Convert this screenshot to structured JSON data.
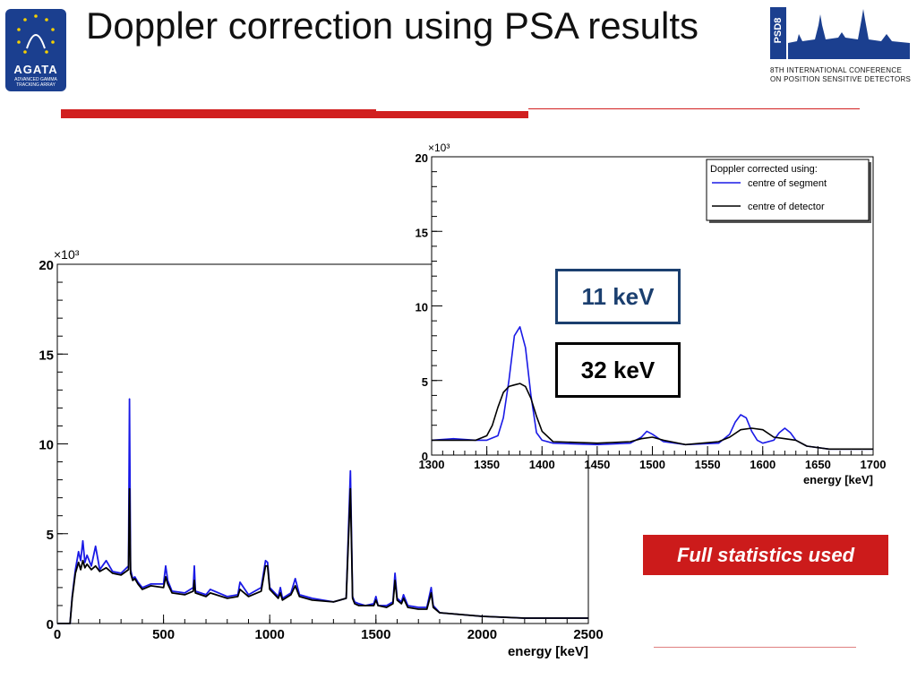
{
  "slide": {
    "title": "Doppler correction using PSA results",
    "agata_logo": {
      "name": "AGATA",
      "sub": "ADVANCED GAMMA TRACKING ARRAY"
    },
    "psd_logo": {
      "box_text": "PSD8",
      "caption": "8TH INTERNATIONAL CONFERENCE ON POSITION SENSITIVE DETECTORS"
    },
    "resolution_labels": {
      "segment": "11 keV",
      "detector": "32 keV"
    },
    "note": "Full statistics used",
    "colors": {
      "accent_red": "#cc1b1b",
      "segment": "#1a1ae6",
      "detector": "#000000",
      "label_blue": "#1b3f6f"
    }
  },
  "chart_data": [
    {
      "type": "line",
      "xlabel": "energy [keV]",
      "ylabel": "",
      "y_multiplier": "×10³",
      "xlim": [
        0,
        2500
      ],
      "ylim": [
        0,
        20
      ],
      "x_ticks": [
        0,
        500,
        1000,
        1500,
        2000,
        2500
      ],
      "y_ticks": [
        0,
        5,
        10,
        15,
        20
      ],
      "series": [
        {
          "name": "centre of segment",
          "color": "#1a1ae6",
          "x": [
            0,
            60,
            70,
            85,
            100,
            110,
            120,
            130,
            140,
            160,
            180,
            200,
            230,
            260,
            300,
            335,
            340,
            345,
            355,
            365,
            380,
            400,
            440,
            500,
            510,
            520,
            540,
            600,
            640,
            645,
            650,
            700,
            720,
            800,
            850,
            860,
            900,
            960,
            980,
            990,
            1000,
            1040,
            1050,
            1060,
            1100,
            1120,
            1140,
            1200,
            1300,
            1360,
            1380,
            1385,
            1390,
            1400,
            1420,
            1450,
            1490,
            1500,
            1510,
            1550,
            1580,
            1590,
            1600,
            1620,
            1630,
            1650,
            1700,
            1740,
            1760,
            1770,
            1800,
            1900,
            2000,
            2200,
            2500
          ],
          "y": [
            0,
            0,
            1.5,
            3.0,
            4.0,
            3.5,
            4.6,
            3.4,
            3.8,
            3.2,
            4.3,
            3.0,
            3.5,
            2.9,
            2.8,
            3.2,
            12.5,
            3.0,
            2.5,
            2.6,
            2.3,
            2.0,
            2.2,
            2.2,
            3.2,
            2.4,
            1.8,
            1.7,
            2.0,
            3.2,
            1.8,
            1.6,
            1.9,
            1.5,
            1.6,
            2.3,
            1.6,
            2.0,
            3.5,
            3.4,
            2.0,
            1.5,
            2.0,
            1.4,
            1.7,
            2.5,
            1.6,
            1.4,
            1.2,
            1.4,
            8.5,
            5.0,
            1.5,
            1.2,
            1.1,
            1.0,
            1.1,
            1.5,
            1.0,
            1.0,
            1.2,
            2.8,
            1.4,
            1.2,
            1.6,
            1.0,
            0.9,
            0.9,
            2.0,
            1.0,
            0.6,
            0.5,
            0.4,
            0.3,
            0.3
          ]
        },
        {
          "name": "centre of detector",
          "color": "#000000",
          "x": [
            0,
            60,
            70,
            85,
            100,
            110,
            120,
            130,
            140,
            160,
            180,
            200,
            230,
            260,
            300,
            335,
            340,
            345,
            355,
            365,
            380,
            400,
            440,
            500,
            510,
            520,
            540,
            600,
            640,
            645,
            650,
            700,
            720,
            800,
            850,
            860,
            900,
            960,
            980,
            990,
            1000,
            1040,
            1050,
            1060,
            1100,
            1120,
            1140,
            1200,
            1300,
            1360,
            1380,
            1385,
            1390,
            1400,
            1420,
            1450,
            1490,
            1500,
            1510,
            1550,
            1580,
            1590,
            1600,
            1620,
            1630,
            1650,
            1700,
            1740,
            1760,
            1770,
            1800,
            1900,
            2000,
            2200,
            2500
          ],
          "y": [
            0,
            0,
            1.4,
            2.8,
            3.4,
            3.0,
            3.5,
            3.1,
            3.3,
            3.0,
            3.2,
            2.9,
            3.1,
            2.8,
            2.7,
            3.0,
            7.5,
            2.8,
            2.4,
            2.5,
            2.2,
            1.9,
            2.1,
            2.0,
            2.6,
            2.2,
            1.7,
            1.6,
            1.8,
            2.4,
            1.7,
            1.5,
            1.7,
            1.4,
            1.5,
            1.9,
            1.5,
            1.8,
            3.2,
            3.2,
            1.9,
            1.4,
            1.7,
            1.3,
            1.6,
            2.1,
            1.5,
            1.3,
            1.2,
            1.4,
            7.5,
            4.5,
            1.4,
            1.1,
            1.0,
            1.0,
            1.0,
            1.3,
            1.0,
            0.9,
            1.1,
            2.4,
            1.3,
            1.1,
            1.4,
            0.9,
            0.8,
            0.8,
            1.7,
            0.9,
            0.6,
            0.5,
            0.4,
            0.3,
            0.3
          ]
        }
      ]
    },
    {
      "type": "line",
      "xlabel": "energy [keV]",
      "ylabel": "",
      "y_multiplier": "×10³",
      "xlim": [
        1300,
        1700
      ],
      "ylim": [
        0,
        20
      ],
      "x_ticks": [
        1300,
        1350,
        1400,
        1450,
        1500,
        1550,
        1600,
        1650,
        1700
      ],
      "y_ticks": [
        0,
        5,
        10,
        15,
        20
      ],
      "legend": {
        "title": "Doppler corrected using:",
        "placement": "top-right"
      },
      "series": [
        {
          "name": "centre of segment",
          "color": "#1a1ae6",
          "x": [
            1300,
            1320,
            1340,
            1350,
            1360,
            1365,
            1370,
            1375,
            1380,
            1385,
            1390,
            1395,
            1400,
            1410,
            1450,
            1480,
            1490,
            1495,
            1500,
            1510,
            1530,
            1560,
            1570,
            1575,
            1580,
            1585,
            1590,
            1595,
            1600,
            1610,
            1615,
            1620,
            1625,
            1630,
            1640,
            1660,
            1680,
            1700
          ],
          "y": [
            1.0,
            1.1,
            1.0,
            1.0,
            1.3,
            2.5,
            5.0,
            8.0,
            8.6,
            7.2,
            4.0,
            1.5,
            1.0,
            0.8,
            0.7,
            0.8,
            1.2,
            1.6,
            1.4,
            0.9,
            0.7,
            0.8,
            1.4,
            2.2,
            2.7,
            2.5,
            1.6,
            1.0,
            0.8,
            1.0,
            1.5,
            1.8,
            1.5,
            1.0,
            0.6,
            0.4,
            0.4,
            0.4
          ]
        },
        {
          "name": "centre of detector",
          "color": "#000000",
          "x": [
            1300,
            1320,
            1340,
            1350,
            1355,
            1360,
            1365,
            1370,
            1375,
            1380,
            1385,
            1390,
            1395,
            1400,
            1410,
            1450,
            1480,
            1490,
            1500,
            1510,
            1530,
            1560,
            1570,
            1580,
            1590,
            1600,
            1610,
            1620,
            1630,
            1640,
            1660,
            1680,
            1700
          ],
          "y": [
            1.0,
            1.0,
            1.0,
            1.3,
            2.0,
            3.2,
            4.2,
            4.6,
            4.7,
            4.8,
            4.6,
            3.8,
            2.6,
            1.6,
            0.9,
            0.8,
            0.9,
            1.1,
            1.2,
            1.0,
            0.7,
            0.9,
            1.2,
            1.7,
            1.8,
            1.7,
            1.2,
            1.1,
            1.0,
            0.6,
            0.4,
            0.4,
            0.4
          ]
        }
      ]
    }
  ]
}
